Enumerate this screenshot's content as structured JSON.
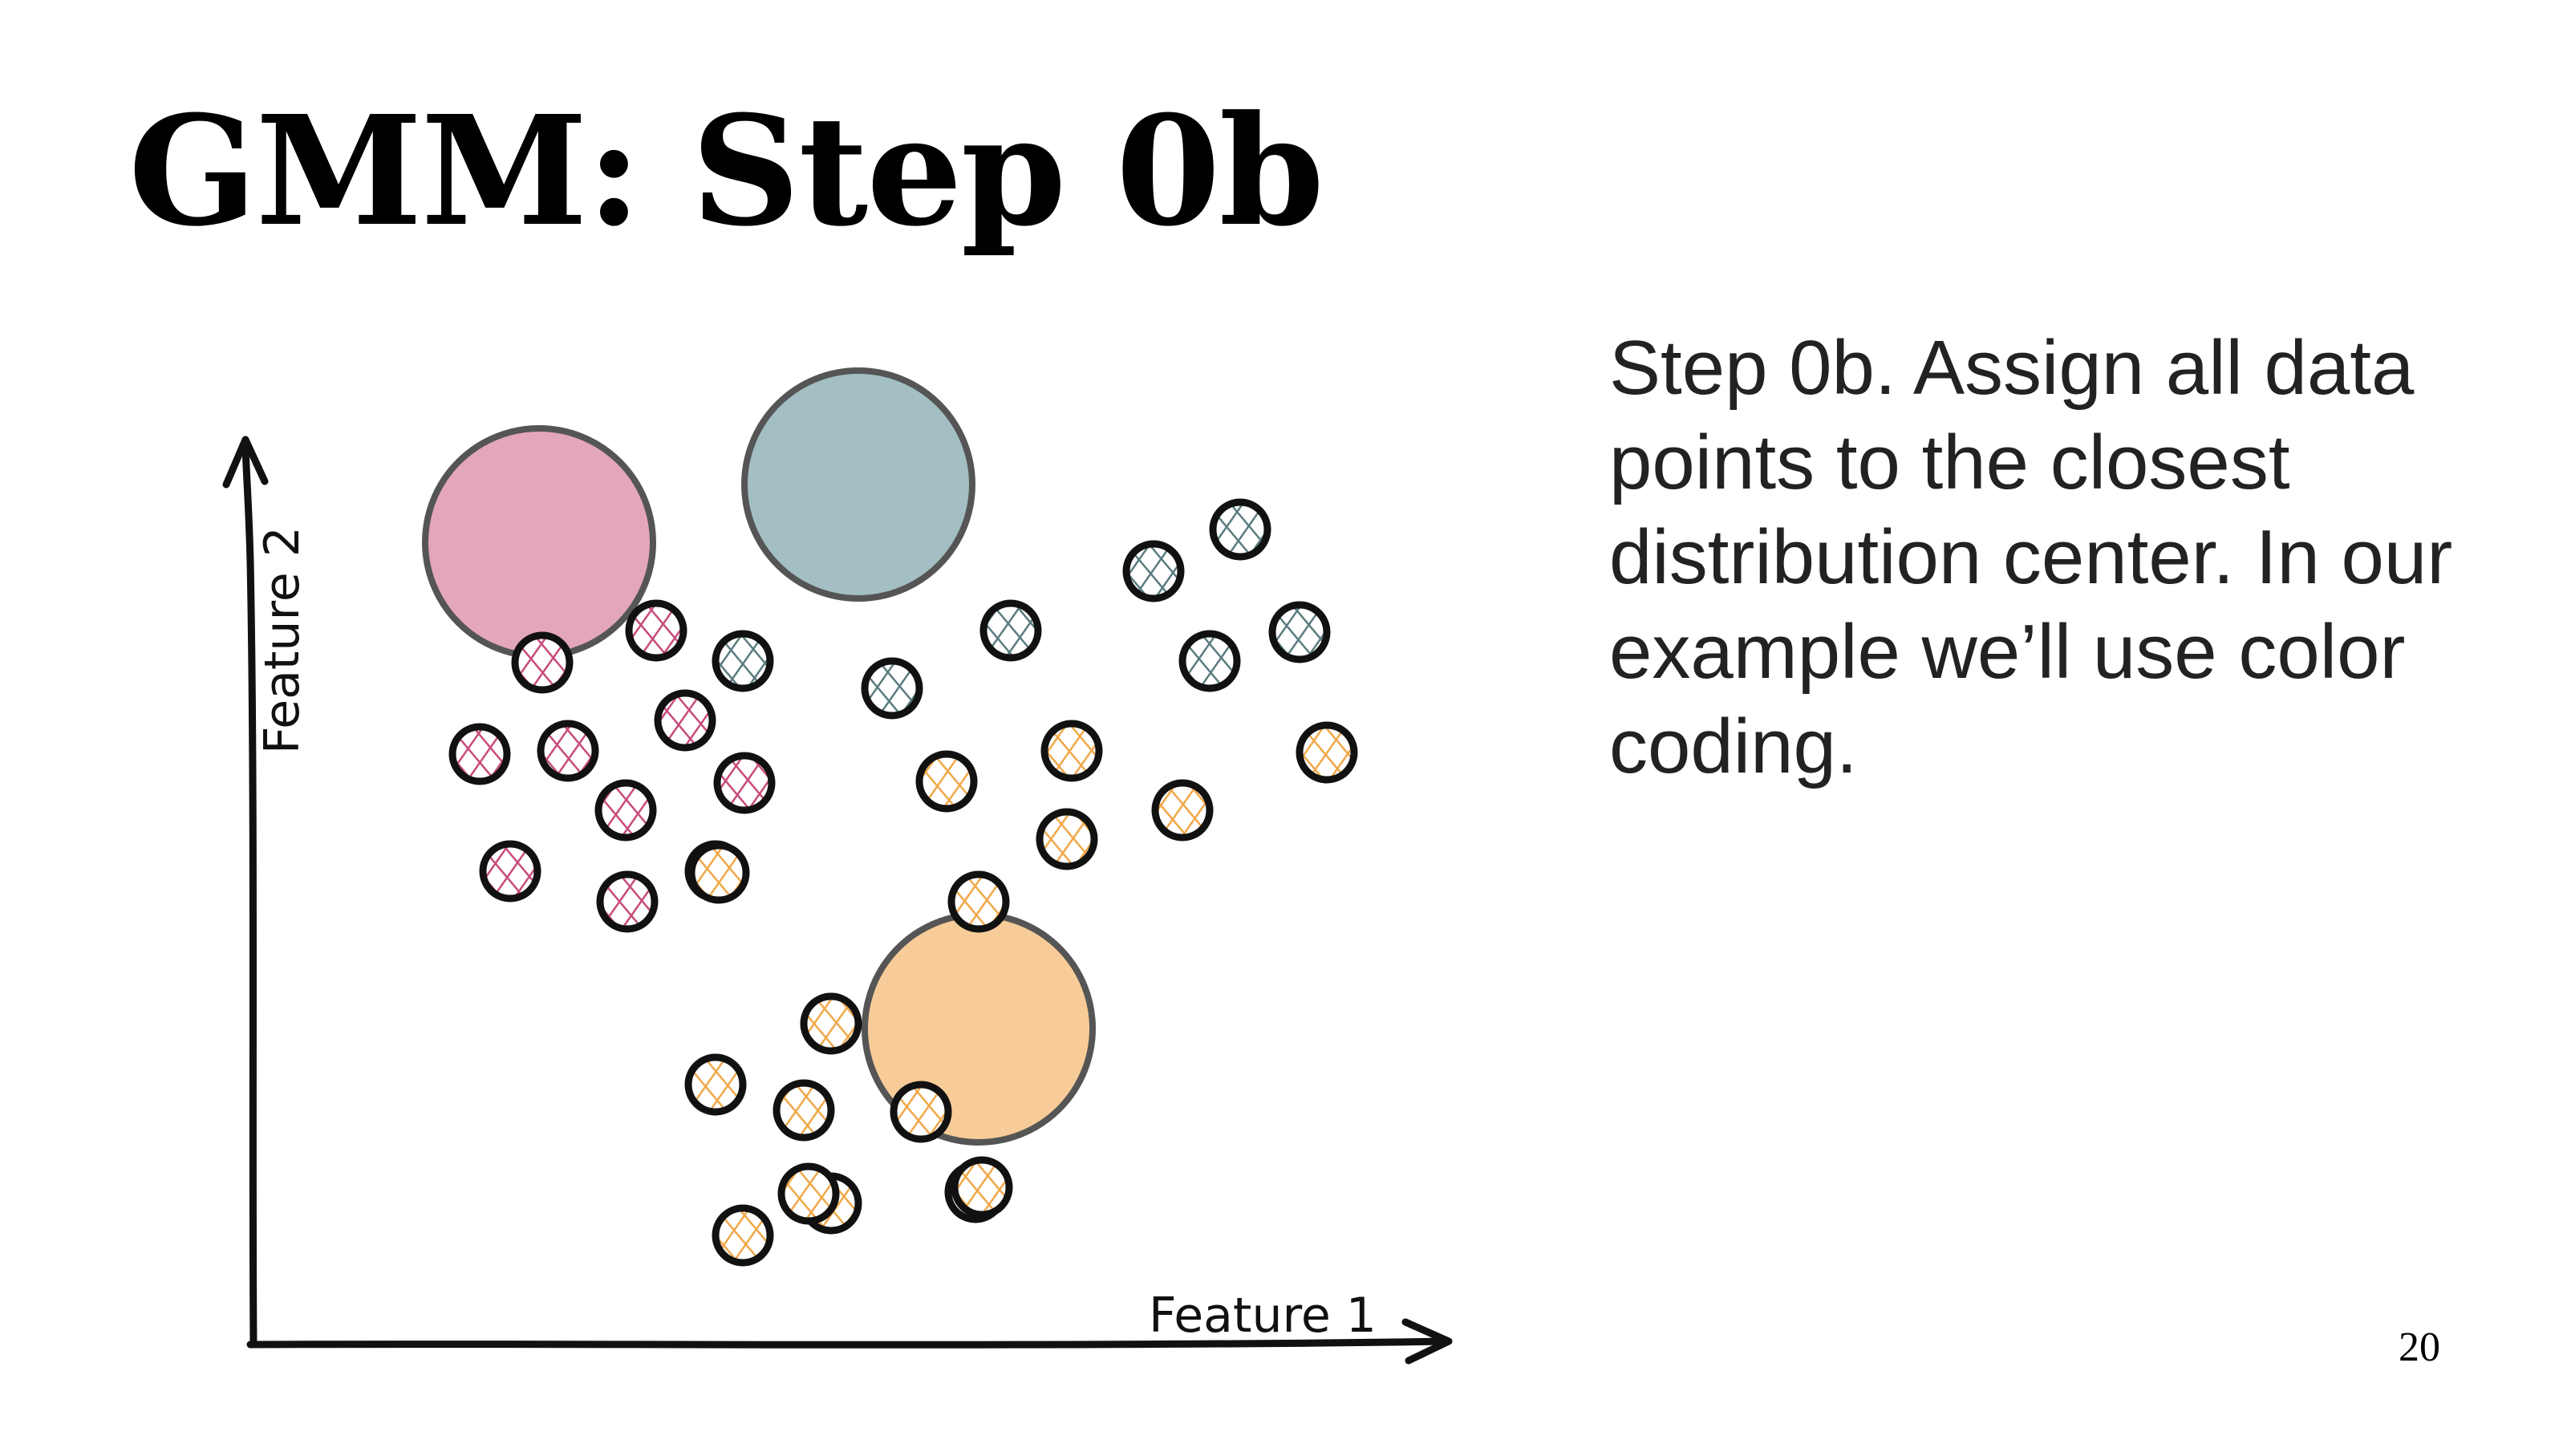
{
  "slide": {
    "title": "GMM: Step 0b",
    "body": "Step 0b. Assign all data points to the closest distribution center. In our example we’ll use color coding.",
    "page_number": "20"
  },
  "diagram": {
    "x_axis_label": "Feature 1",
    "y_axis_label": "Feature 2",
    "colors": {
      "pink": "#e3a6bd",
      "teal": "#a3bfc3",
      "orange": "#f8cc98",
      "pink_hatch": "#c84b7c",
      "teal_hatch": "#5b7c80",
      "orange_hatch": "#f0a849",
      "outline": "#111111",
      "center_outline": "#555555"
    },
    "centers": [
      {
        "name": "center-pink",
        "color": "pink"
      },
      {
        "name": "center-teal",
        "color": "teal"
      },
      {
        "name": "center-orange",
        "color": "orange"
      }
    ],
    "points": [
      {
        "color": "pink"
      },
      {
        "color": "pink"
      },
      {
        "color": "pink"
      },
      {
        "color": "pink"
      },
      {
        "color": "pink"
      },
      {
        "color": "pink"
      },
      {
        "color": "pink"
      },
      {
        "color": "pink"
      },
      {
        "color": "pink"
      },
      {
        "color": "pink"
      },
      {
        "color": "teal"
      },
      {
        "color": "teal"
      },
      {
        "color": "teal"
      },
      {
        "color": "teal"
      },
      {
        "color": "teal"
      },
      {
        "color": "teal"
      },
      {
        "color": "teal"
      },
      {
        "color": "orange"
      },
      {
        "color": "orange"
      },
      {
        "color": "orange"
      },
      {
        "color": "orange"
      },
      {
        "color": "orange"
      },
      {
        "color": "orange"
      },
      {
        "color": "orange"
      },
      {
        "color": "orange"
      },
      {
        "color": "orange"
      },
      {
        "color": "orange"
      },
      {
        "color": "orange"
      },
      {
        "color": "orange"
      },
      {
        "color": "orange"
      },
      {
        "color": "orange"
      },
      {
        "color": "orange"
      },
      {
        "color": "orange"
      }
    ]
  }
}
